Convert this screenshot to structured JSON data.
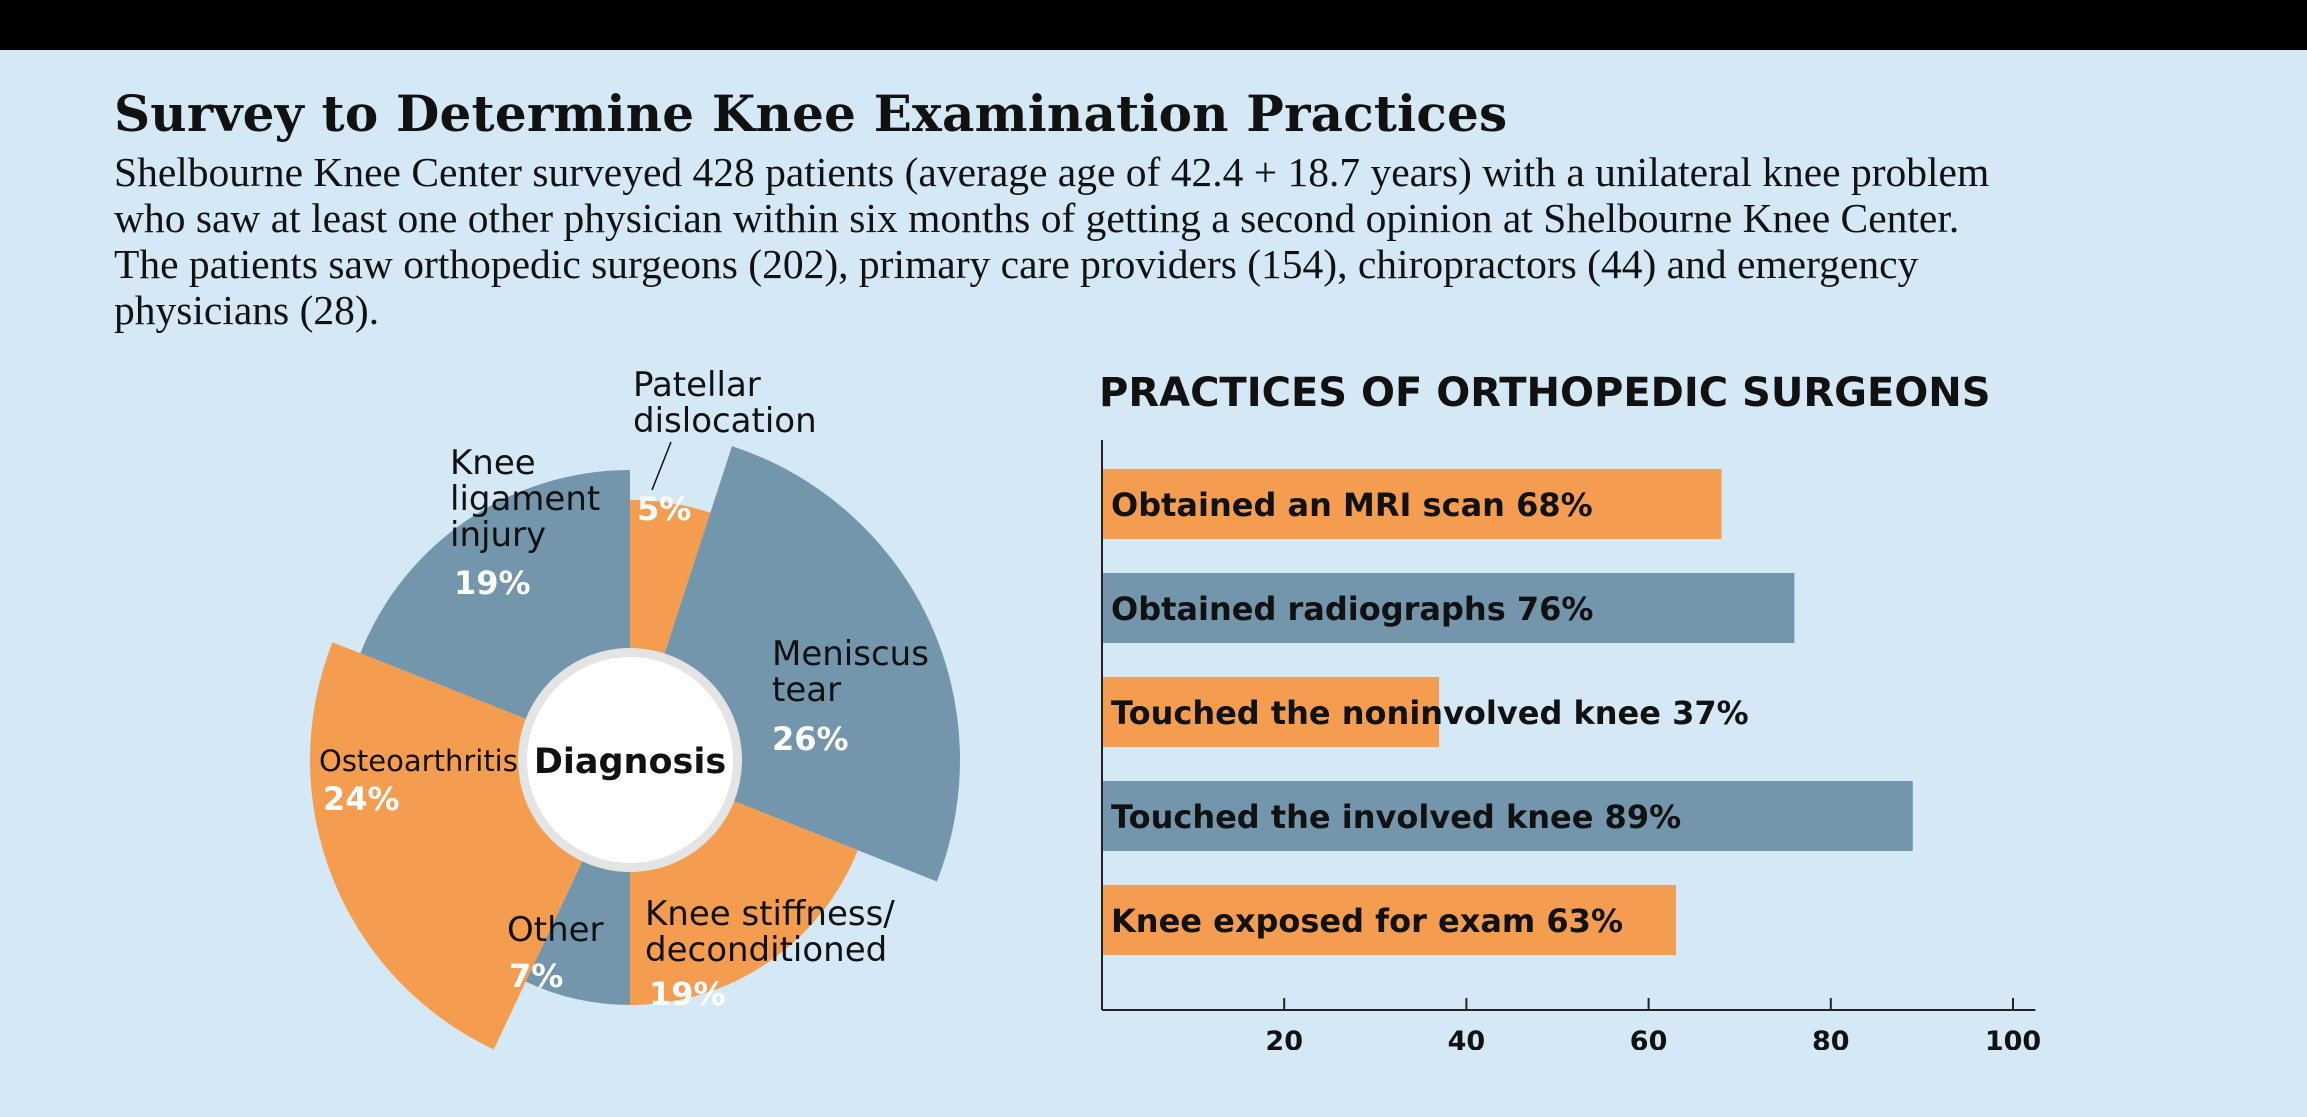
{
  "header": {
    "title": "Survey to Determine Knee Examination Practices",
    "subtitle_lines": [
      "Shelbourne Knee Center surveyed 428 patients (average age of 42.4 + 18.7 years) with a unilateral knee problem",
      "who saw at least one other physician within six months of getting a second opinion at Shelbourne Knee Center.",
      "The patients saw orthopedic surgeons (202), primary care providers (154), chiropractors (44) and emergency",
      "physicians (28)."
    ]
  },
  "colors": {
    "orange": "#f49d51",
    "blue": "#7396ad",
    "background": "#d5e8f6",
    "text": "#111111"
  },
  "chart_data": [
    {
      "type": "pie",
      "center_label": "Diagnosis",
      "slices": [
        {
          "label": "Patellar dislocation",
          "label_lines": [
            "Patellar",
            "dislocation"
          ],
          "value": 5,
          "value_label": "5%",
          "color": "#f49d51"
        },
        {
          "label": "Meniscus tear",
          "label_lines": [
            "Meniscus",
            "tear"
          ],
          "value": 26,
          "value_label": "26%",
          "color": "#7396ad"
        },
        {
          "label": "Knee stiffness/ deconditioned",
          "label_lines": [
            "Knee stiffness/",
            "deconditioned"
          ],
          "value": 19,
          "value_label": "19%",
          "color": "#f49d51"
        },
        {
          "label": "Other",
          "label_lines": [
            "Other"
          ],
          "value": 7,
          "value_label": "7%",
          "color": "#7396ad"
        },
        {
          "label": "Osteoarthritis",
          "label_lines": [
            "Osteoarthritis"
          ],
          "value": 24,
          "value_label": "24%",
          "color": "#f49d51"
        },
        {
          "label": "Knee ligament injury",
          "label_lines": [
            "Knee",
            "ligament",
            "injury"
          ],
          "value": 19,
          "value_label": "19%",
          "color": "#7396ad"
        }
      ]
    },
    {
      "type": "bar",
      "orientation": "horizontal",
      "title": "PRACTICES OF ORTHOPEDIC SURGEONS",
      "xlim": [
        0,
        103
      ],
      "xticks": [
        20,
        40,
        60,
        80,
        100
      ],
      "bars": [
        {
          "label": "Obtained an MRI scan  68%",
          "value": 68,
          "color": "#f49d51"
        },
        {
          "label": "Obtained radiographs  76%",
          "value": 76,
          "color": "#7396ad"
        },
        {
          "label": "Touched the noninvolved knee  37%",
          "value": 37,
          "color": "#f49d51"
        },
        {
          "label": "Touched the involved knee  89%",
          "value": 89,
          "color": "#7396ad"
        },
        {
          "label": "Knee exposed for exam  63%",
          "value": 63,
          "color": "#f49d51"
        }
      ]
    }
  ]
}
